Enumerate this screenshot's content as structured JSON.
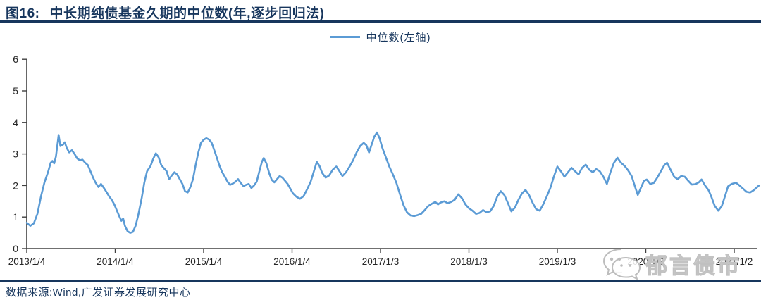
{
  "header": {
    "figure_label": "图16:",
    "title": "中长期纯债基金久期的中位数(年,逐步回归法)"
  },
  "legend": {
    "label": "中位数(左轴)"
  },
  "footer": {
    "source": "数据来源:Wind,广发证券发展研究中心"
  },
  "watermark": {
    "text": "郁言债市",
    "icon": "wechat-chat-bubbles"
  },
  "colors": {
    "line": "#5B9BD5",
    "text_navy": "#17365D",
    "axis": "#404040",
    "tick_label": "#262626",
    "watermark": "#bdbdbd"
  },
  "chart_data": {
    "type": "line",
    "title": "中长期纯债基金久期的中位数(年,逐步回归法)",
    "grid": false,
    "legend_position": "top-center",
    "x_axis": {
      "tick_labels": [
        "2013/1/4",
        "2014/1/4",
        "2015/1/4",
        "2016/1/4",
        "2017/1/3",
        "2018/1/3",
        "2019/1/3",
        "2020/1/3",
        "2021/1/2"
      ],
      "tick_positions_year": [
        2013,
        2014,
        2015,
        2016,
        2017,
        2018,
        2019,
        2020,
        2021
      ],
      "range_year": [
        2013.0,
        2021.3
      ]
    },
    "y_axis": {
      "min": 0,
      "max": 6,
      "step": 1,
      "tick_labels": [
        "0",
        "1",
        "2",
        "3",
        "4",
        "5",
        "6"
      ]
    },
    "series": [
      {
        "name": "中位数(左轴)",
        "axis": "left",
        "x_unit": "decimal_year",
        "points": [
          [
            2013.0,
            0.82
          ],
          [
            2013.04,
            0.72
          ],
          [
            2013.08,
            0.8
          ],
          [
            2013.12,
            1.1
          ],
          [
            2013.16,
            1.65
          ],
          [
            2013.2,
            2.1
          ],
          [
            2013.24,
            2.42
          ],
          [
            2013.27,
            2.72
          ],
          [
            2013.29,
            2.78
          ],
          [
            2013.31,
            2.7
          ],
          [
            2013.33,
            2.92
          ],
          [
            2013.36,
            3.6
          ],
          [
            2013.38,
            3.25
          ],
          [
            2013.41,
            3.3
          ],
          [
            2013.43,
            3.37
          ],
          [
            2013.45,
            3.2
          ],
          [
            2013.48,
            3.05
          ],
          [
            2013.51,
            3.12
          ],
          [
            2013.54,
            3.0
          ],
          [
            2013.57,
            2.86
          ],
          [
            2013.6,
            2.8
          ],
          [
            2013.63,
            2.82
          ],
          [
            2013.66,
            2.72
          ],
          [
            2013.69,
            2.65
          ],
          [
            2013.72,
            2.45
          ],
          [
            2013.75,
            2.25
          ],
          [
            2013.78,
            2.08
          ],
          [
            2013.81,
            1.95
          ],
          [
            2013.84,
            2.05
          ],
          [
            2013.87,
            1.93
          ],
          [
            2013.9,
            1.8
          ],
          [
            2013.93,
            1.66
          ],
          [
            2013.96,
            1.55
          ],
          [
            2013.99,
            1.4
          ],
          [
            2014.02,
            1.2
          ],
          [
            2014.05,
            1.0
          ],
          [
            2014.07,
            0.88
          ],
          [
            2014.09,
            0.95
          ],
          [
            2014.11,
            0.72
          ],
          [
            2014.14,
            0.55
          ],
          [
            2014.17,
            0.5
          ],
          [
            2014.2,
            0.53
          ],
          [
            2014.23,
            0.72
          ],
          [
            2014.26,
            1.05
          ],
          [
            2014.3,
            1.6
          ],
          [
            2014.33,
            2.1
          ],
          [
            2014.36,
            2.45
          ],
          [
            2014.4,
            2.62
          ],
          [
            2014.43,
            2.85
          ],
          [
            2014.46,
            3.02
          ],
          [
            2014.49,
            2.9
          ],
          [
            2014.52,
            2.65
          ],
          [
            2014.55,
            2.55
          ],
          [
            2014.58,
            2.46
          ],
          [
            2014.61,
            2.2
          ],
          [
            2014.64,
            2.32
          ],
          [
            2014.67,
            2.42
          ],
          [
            2014.7,
            2.35
          ],
          [
            2014.73,
            2.2
          ],
          [
            2014.76,
            2.05
          ],
          [
            2014.79,
            1.82
          ],
          [
            2014.82,
            1.78
          ],
          [
            2014.85,
            1.95
          ],
          [
            2014.88,
            2.2
          ],
          [
            2014.91,
            2.65
          ],
          [
            2014.94,
            3.05
          ],
          [
            2014.97,
            3.35
          ],
          [
            2015.0,
            3.45
          ],
          [
            2015.03,
            3.5
          ],
          [
            2015.06,
            3.46
          ],
          [
            2015.09,
            3.36
          ],
          [
            2015.12,
            3.12
          ],
          [
            2015.15,
            2.88
          ],
          [
            2015.18,
            2.62
          ],
          [
            2015.21,
            2.42
          ],
          [
            2015.24,
            2.28
          ],
          [
            2015.27,
            2.12
          ],
          [
            2015.3,
            2.02
          ],
          [
            2015.33,
            2.06
          ],
          [
            2015.36,
            2.12
          ],
          [
            2015.39,
            2.2
          ],
          [
            2015.42,
            2.08
          ],
          [
            2015.45,
            1.98
          ],
          [
            2015.48,
            2.02
          ],
          [
            2015.51,
            2.05
          ],
          [
            2015.54,
            1.92
          ],
          [
            2015.57,
            2.0
          ],
          [
            2015.6,
            2.12
          ],
          [
            2015.63,
            2.45
          ],
          [
            2015.66,
            2.76
          ],
          [
            2015.68,
            2.87
          ],
          [
            2015.71,
            2.7
          ],
          [
            2015.74,
            2.4
          ],
          [
            2015.77,
            2.18
          ],
          [
            2015.8,
            2.1
          ],
          [
            2015.83,
            2.2
          ],
          [
            2015.86,
            2.3
          ],
          [
            2015.89,
            2.25
          ],
          [
            2015.92,
            2.15
          ],
          [
            2015.95,
            2.05
          ],
          [
            2015.98,
            1.9
          ],
          [
            2016.01,
            1.75
          ],
          [
            2016.05,
            1.64
          ],
          [
            2016.09,
            1.58
          ],
          [
            2016.13,
            1.66
          ],
          [
            2016.17,
            1.88
          ],
          [
            2016.21,
            2.12
          ],
          [
            2016.25,
            2.48
          ],
          [
            2016.28,
            2.75
          ],
          [
            2016.31,
            2.62
          ],
          [
            2016.34,
            2.4
          ],
          [
            2016.38,
            2.25
          ],
          [
            2016.42,
            2.32
          ],
          [
            2016.46,
            2.5
          ],
          [
            2016.5,
            2.6
          ],
          [
            2016.53,
            2.48
          ],
          [
            2016.57,
            2.3
          ],
          [
            2016.61,
            2.42
          ],
          [
            2016.65,
            2.6
          ],
          [
            2016.69,
            2.8
          ],
          [
            2016.73,
            3.05
          ],
          [
            2016.77,
            3.25
          ],
          [
            2016.81,
            3.35
          ],
          [
            2016.84,
            3.28
          ],
          [
            2016.87,
            3.05
          ],
          [
            2016.9,
            3.3
          ],
          [
            2016.93,
            3.55
          ],
          [
            2016.96,
            3.68
          ],
          [
            2016.99,
            3.5
          ],
          [
            2017.02,
            3.2
          ],
          [
            2017.06,
            2.9
          ],
          [
            2017.1,
            2.6
          ],
          [
            2017.14,
            2.35
          ],
          [
            2017.18,
            2.08
          ],
          [
            2017.22,
            1.72
          ],
          [
            2017.26,
            1.38
          ],
          [
            2017.3,
            1.15
          ],
          [
            2017.34,
            1.05
          ],
          [
            2017.38,
            1.03
          ],
          [
            2017.42,
            1.06
          ],
          [
            2017.46,
            1.1
          ],
          [
            2017.5,
            1.22
          ],
          [
            2017.54,
            1.35
          ],
          [
            2017.58,
            1.42
          ],
          [
            2017.62,
            1.48
          ],
          [
            2017.65,
            1.4
          ],
          [
            2017.68,
            1.46
          ],
          [
            2017.72,
            1.5
          ],
          [
            2017.76,
            1.44
          ],
          [
            2017.8,
            1.48
          ],
          [
            2017.84,
            1.55
          ],
          [
            2017.88,
            1.72
          ],
          [
            2017.92,
            1.6
          ],
          [
            2017.96,
            1.4
          ],
          [
            2018.0,
            1.28
          ],
          [
            2018.04,
            1.2
          ],
          [
            2018.08,
            1.1
          ],
          [
            2018.12,
            1.13
          ],
          [
            2018.16,
            1.22
          ],
          [
            2018.2,
            1.15
          ],
          [
            2018.24,
            1.18
          ],
          [
            2018.28,
            1.35
          ],
          [
            2018.32,
            1.65
          ],
          [
            2018.36,
            1.82
          ],
          [
            2018.4,
            1.7
          ],
          [
            2018.44,
            1.45
          ],
          [
            2018.48,
            1.18
          ],
          [
            2018.52,
            1.3
          ],
          [
            2018.56,
            1.55
          ],
          [
            2018.6,
            1.75
          ],
          [
            2018.64,
            1.86
          ],
          [
            2018.68,
            1.7
          ],
          [
            2018.72,
            1.45
          ],
          [
            2018.76,
            1.25
          ],
          [
            2018.8,
            1.2
          ],
          [
            2018.84,
            1.4
          ],
          [
            2018.88,
            1.65
          ],
          [
            2018.92,
            1.92
          ],
          [
            2018.96,
            2.28
          ],
          [
            2019.0,
            2.6
          ],
          [
            2019.04,
            2.45
          ],
          [
            2019.08,
            2.28
          ],
          [
            2019.12,
            2.42
          ],
          [
            2019.16,
            2.56
          ],
          [
            2019.2,
            2.45
          ],
          [
            2019.24,
            2.35
          ],
          [
            2019.28,
            2.56
          ],
          [
            2019.32,
            2.66
          ],
          [
            2019.36,
            2.5
          ],
          [
            2019.4,
            2.42
          ],
          [
            2019.44,
            2.52
          ],
          [
            2019.48,
            2.45
          ],
          [
            2019.52,
            2.28
          ],
          [
            2019.56,
            2.05
          ],
          [
            2019.6,
            2.42
          ],
          [
            2019.64,
            2.72
          ],
          [
            2019.68,
            2.88
          ],
          [
            2019.72,
            2.72
          ],
          [
            2019.76,
            2.62
          ],
          [
            2019.8,
            2.48
          ],
          [
            2019.84,
            2.3
          ],
          [
            2019.88,
            1.95
          ],
          [
            2019.91,
            1.7
          ],
          [
            2019.94,
            1.9
          ],
          [
            2019.98,
            2.15
          ],
          [
            2020.01,
            2.19
          ],
          [
            2020.05,
            2.05
          ],
          [
            2020.09,
            2.08
          ],
          [
            2020.13,
            2.25
          ],
          [
            2020.17,
            2.45
          ],
          [
            2020.21,
            2.65
          ],
          [
            2020.24,
            2.72
          ],
          [
            2020.28,
            2.5
          ],
          [
            2020.32,
            2.28
          ],
          [
            2020.36,
            2.2
          ],
          [
            2020.4,
            2.3
          ],
          [
            2020.44,
            2.28
          ],
          [
            2020.48,
            2.15
          ],
          [
            2020.52,
            2.03
          ],
          [
            2020.56,
            2.04
          ],
          [
            2020.6,
            2.1
          ],
          [
            2020.63,
            2.19
          ],
          [
            2020.67,
            2.0
          ],
          [
            2020.71,
            1.85
          ],
          [
            2020.74,
            1.65
          ],
          [
            2020.78,
            1.35
          ],
          [
            2020.82,
            1.2
          ],
          [
            2020.86,
            1.35
          ],
          [
            2020.9,
            1.7
          ],
          [
            2020.93,
            1.97
          ],
          [
            2020.97,
            2.05
          ],
          [
            2021.02,
            2.09
          ],
          [
            2021.06,
            2.0
          ],
          [
            2021.1,
            1.9
          ],
          [
            2021.14,
            1.8
          ],
          [
            2021.18,
            1.78
          ],
          [
            2021.22,
            1.85
          ],
          [
            2021.26,
            1.95
          ],
          [
            2021.28,
            2.0
          ]
        ]
      }
    ]
  }
}
